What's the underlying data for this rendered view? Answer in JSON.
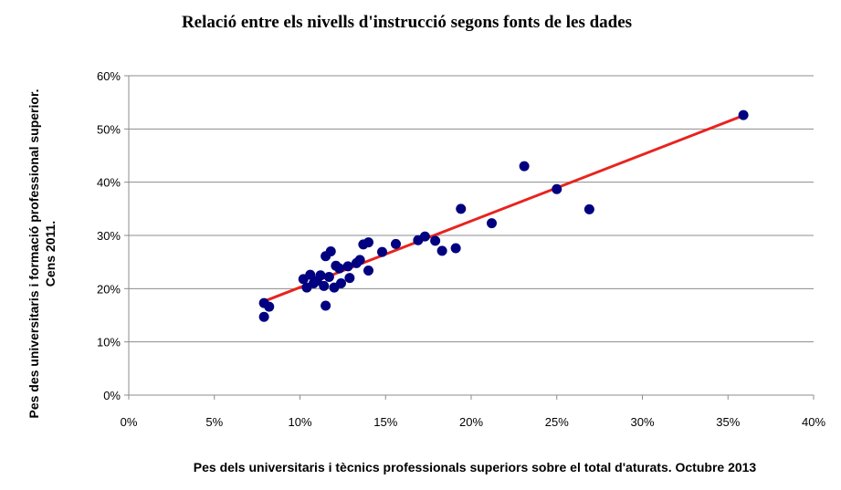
{
  "chart_data": {
    "type": "scatter",
    "title": "Relació  entre els nivells d'instrucció segons fonts de les dades",
    "xlabel": "Pes dels universitaris i tècnics professionals superiors sobre el total d'aturats. Octubre 2013",
    "ylabel_lines": [
      "Pes des universitaris i formació professional superior.",
      "Cens 2011."
    ],
    "xlim": [
      0,
      40
    ],
    "ylim": [
      0,
      60
    ],
    "x_ticks": [
      0,
      5,
      10,
      15,
      20,
      25,
      30,
      35,
      40
    ],
    "y_ticks": [
      0,
      10,
      20,
      30,
      40,
      50,
      60
    ],
    "x_tick_labels": [
      "0%",
      "5%",
      "10%",
      "15%",
      "20%",
      "25%",
      "30%",
      "35%",
      "40%"
    ],
    "y_tick_labels": [
      "0%",
      "10%",
      "20%",
      "30%",
      "40%",
      "50%",
      "60%"
    ],
    "grid": "horizontal",
    "legend": "none",
    "point_color": "#000080",
    "trendline_color": "#e8231f",
    "trendline": {
      "x": [
        7.8,
        35.8
      ],
      "y": [
        17.5,
        52.4
      ]
    },
    "points": [
      {
        "x": 7.9,
        "y": 17.3
      },
      {
        "x": 7.9,
        "y": 14.7
      },
      {
        "x": 8.2,
        "y": 16.6
      },
      {
        "x": 10.2,
        "y": 21.8
      },
      {
        "x": 10.4,
        "y": 20.2
      },
      {
        "x": 10.6,
        "y": 22.6
      },
      {
        "x": 10.8,
        "y": 21.0
      },
      {
        "x": 11.0,
        "y": 21.5
      },
      {
        "x": 11.2,
        "y": 22.5
      },
      {
        "x": 11.4,
        "y": 20.5
      },
      {
        "x": 11.5,
        "y": 26.1
      },
      {
        "x": 11.5,
        "y": 16.8
      },
      {
        "x": 11.7,
        "y": 22.2
      },
      {
        "x": 11.8,
        "y": 27.0
      },
      {
        "x": 12.0,
        "y": 20.2
      },
      {
        "x": 12.1,
        "y": 24.3
      },
      {
        "x": 12.3,
        "y": 23.8
      },
      {
        "x": 12.4,
        "y": 21.0
      },
      {
        "x": 12.8,
        "y": 24.2
      },
      {
        "x": 12.9,
        "y": 22.0
      },
      {
        "x": 13.3,
        "y": 24.8
      },
      {
        "x": 13.5,
        "y": 25.4
      },
      {
        "x": 13.7,
        "y": 28.3
      },
      {
        "x": 14.0,
        "y": 28.7
      },
      {
        "x": 14.0,
        "y": 23.4
      },
      {
        "x": 14.8,
        "y": 26.9
      },
      {
        "x": 15.6,
        "y": 28.4
      },
      {
        "x": 16.9,
        "y": 29.1
      },
      {
        "x": 17.3,
        "y": 29.8
      },
      {
        "x": 17.9,
        "y": 29.0
      },
      {
        "x": 18.3,
        "y": 27.1
      },
      {
        "x": 19.1,
        "y": 27.6
      },
      {
        "x": 19.4,
        "y": 35.0
      },
      {
        "x": 21.2,
        "y": 32.3
      },
      {
        "x": 23.1,
        "y": 43.0
      },
      {
        "x": 25.0,
        "y": 38.7
      },
      {
        "x": 26.9,
        "y": 34.9
      },
      {
        "x": 35.9,
        "y": 52.6
      }
    ]
  }
}
